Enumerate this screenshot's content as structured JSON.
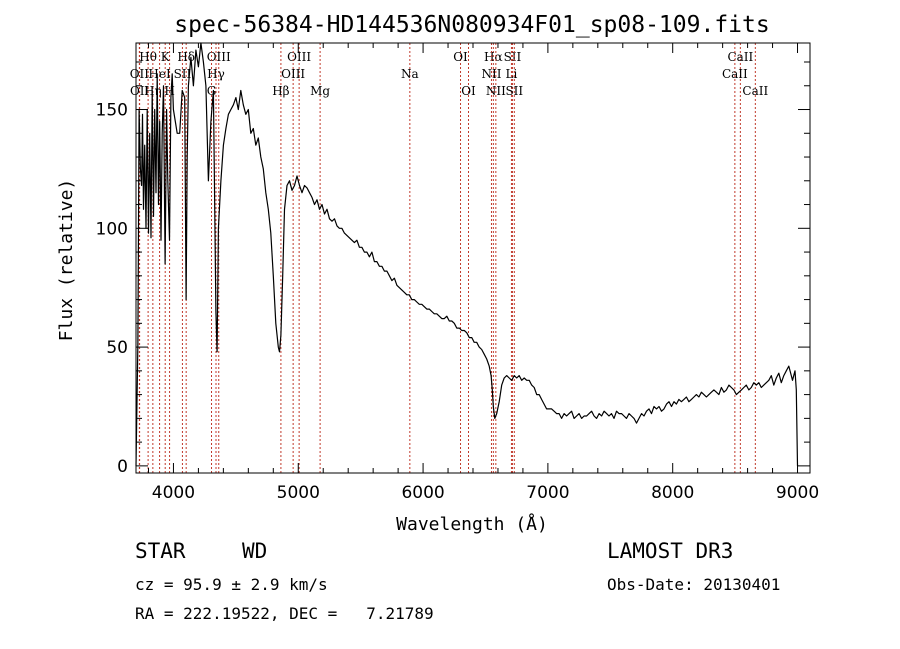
{
  "chart_data": {
    "type": "line",
    "title": "spec-56384-HD144536N080934F01_sp08-109.fits",
    "xlabel": "Wavelength (Å)",
    "ylabel": "Flux (relative)",
    "xlim": [
      3700,
      9100
    ],
    "ylim": [
      -3,
      178
    ],
    "xticks": [
      4000,
      5000,
      6000,
      7000,
      8000,
      9000
    ],
    "yticks": [
      0,
      50,
      100,
      150
    ],
    "series": [
      {
        "name": "spectrum",
        "x": [
          3700,
          3715,
          3725,
          3735,
          3745,
          3752,
          3760,
          3770,
          3780,
          3790,
          3800,
          3810,
          3820,
          3830,
          3840,
          3850,
          3860,
          3870,
          3880,
          3890,
          3900,
          3910,
          3920,
          3933,
          3945,
          3955,
          3968,
          3980,
          3990,
          4000,
          4015,
          4030,
          4050,
          4070,
          4090,
          4101,
          4110,
          4120,
          4140,
          4160,
          4180,
          4200,
          4220,
          4240,
          4260,
          4280,
          4300,
          4320,
          4340,
          4350,
          4360,
          4380,
          4400,
          4420,
          4440,
          4460,
          4480,
          4500,
          4520,
          4540,
          4560,
          4580,
          4600,
          4620,
          4640,
          4660,
          4680,
          4700,
          4720,
          4740,
          4760,
          4780,
          4800,
          4820,
          4840,
          4850,
          4861,
          4875,
          4890,
          4910,
          4930,
          4950,
          4970,
          4990,
          5010,
          5030,
          5050,
          5070,
          5090,
          5110,
          5130,
          5150,
          5170,
          5190,
          5210,
          5230,
          5250,
          5270,
          5290,
          5310,
          5330,
          5350,
          5370,
          5390,
          5410,
          5430,
          5450,
          5470,
          5490,
          5510,
          5530,
          5550,
          5570,
          5590,
          5610,
          5630,
          5650,
          5670,
          5690,
          5710,
          5730,
          5750,
          5770,
          5790,
          5810,
          5830,
          5850,
          5870,
          5890,
          5910,
          5930,
          5950,
          5970,
          5990,
          6010,
          6030,
          6050,
          6070,
          6090,
          6110,
          6130,
          6150,
          6170,
          6190,
          6210,
          6230,
          6250,
          6270,
          6290,
          6310,
          6330,
          6350,
          6370,
          6390,
          6410,
          6430,
          6450,
          6470,
          6490,
          6510,
          6530,
          6545,
          6555,
          6563,
          6575,
          6590,
          6610,
          6630,
          6650,
          6670,
          6690,
          6710,
          6730,
          6750,
          6770,
          6790,
          6810,
          6830,
          6850,
          6870,
          6890,
          6910,
          6930,
          6950,
          6970,
          6990,
          7010,
          7030,
          7050,
          7070,
          7090,
          7110,
          7130,
          7150,
          7170,
          7190,
          7210,
          7230,
          7250,
          7270,
          7290,
          7310,
          7330,
          7350,
          7370,
          7390,
          7410,
          7430,
          7450,
          7470,
          7490,
          7510,
          7530,
          7550,
          7570,
          7590,
          7610,
          7630,
          7650,
          7670,
          7690,
          7710,
          7730,
          7750,
          7770,
          7790,
          7810,
          7830,
          7850,
          7870,
          7890,
          7910,
          7930,
          7950,
          7970,
          7990,
          8010,
          8030,
          8050,
          8070,
          8090,
          8110,
          8130,
          8150,
          8170,
          8190,
          8210,
          8230,
          8250,
          8270,
          8290,
          8310,
          8330,
          8350,
          8370,
          8390,
          8410,
          8430,
          8450,
          8470,
          8490,
          8510,
          8530,
          8550,
          8570,
          8590,
          8610,
          8630,
          8650,
          8670,
          8690,
          8710,
          8730,
          8750,
          8770,
          8790,
          8810,
          8830,
          8850,
          8870,
          8890,
          8910,
          8930,
          8950,
          8960,
          8980,
          8990,
          9000
        ],
        "values": [
          0,
          52,
          150,
          125,
          118,
          148,
          108,
          135,
          100,
          150,
          98,
          140,
          96,
          158,
          105,
          150,
          115,
          165,
          110,
          145,
          95,
          140,
          160,
          85,
          150,
          120,
          95,
          155,
          165,
          150,
          145,
          140,
          140,
          158,
          155,
          70,
          130,
          160,
          172,
          160,
          175,
          168,
          178,
          170,
          160,
          120,
          145,
          158,
          65,
          48,
          100,
          120,
          135,
          142,
          148,
          150,
          152,
          155,
          150,
          158,
          152,
          148,
          150,
          140,
          142,
          135,
          138,
          130,
          125,
          115,
          108,
          98,
          80,
          60,
          50,
          48,
          55,
          80,
          108,
          118,
          120,
          116,
          118,
          122,
          118,
          115,
          118,
          117,
          115,
          113,
          110,
          112,
          108,
          110,
          106,
          108,
          104,
          103,
          104,
          101,
          100,
          100,
          98,
          97,
          96,
          95,
          94,
          95,
          92,
          92,
          90,
          90,
          88,
          90,
          86,
          86,
          84,
          84,
          82,
          82,
          80,
          78,
          79,
          76,
          75,
          74,
          73,
          72,
          72,
          70,
          70,
          69,
          68,
          68,
          67,
          66,
          66,
          65,
          64,
          64,
          63,
          62,
          62,
          63,
          61,
          61,
          60,
          58,
          58,
          57,
          57,
          56,
          54,
          54,
          52,
          52,
          50,
          49,
          47,
          45,
          42,
          38,
          32,
          25,
          20,
          22,
          27,
          34,
          37,
          38,
          37,
          36,
          38,
          37,
          38,
          36,
          37,
          36,
          36,
          34,
          33,
          30,
          30,
          28,
          26,
          24,
          24,
          24,
          23,
          22,
          22,
          20,
          22,
          21,
          22,
          23,
          20,
          21,
          22,
          20,
          21,
          21,
          22,
          23,
          21,
          20,
          22,
          21,
          23,
          22,
          21,
          22,
          20,
          23,
          22,
          22,
          21,
          20,
          22,
          21,
          20,
          18,
          20,
          22,
          21,
          23,
          24,
          22,
          25,
          24,
          25,
          23,
          24,
          26,
          27,
          25,
          27,
          26,
          28,
          27,
          28,
          29,
          27,
          28,
          29,
          30,
          29,
          31,
          30,
          29,
          30,
          31,
          32,
          31,
          30,
          33,
          31,
          32,
          34,
          33,
          32,
          30,
          31,
          32,
          33,
          34,
          32,
          33,
          35,
          34,
          35,
          33,
          34,
          35,
          36,
          38,
          34,
          37,
          39,
          35,
          38,
          40,
          42,
          38,
          36,
          40,
          32,
          0
        ]
      }
    ],
    "spectral_lines": [
      {
        "name": "Hθ",
        "x": 3797,
        "row": 1
      },
      {
        "name": "OII",
        "x": 3727,
        "row": 2
      },
      {
        "name": "OII",
        "x": 3729,
        "row": 3
      },
      {
        "name": "Hη",
        "x": 3835,
        "row": 3
      },
      {
        "name": "HeI",
        "x": 3889,
        "row": 2
      },
      {
        "name": "K",
        "x": 3934,
        "row": 1
      },
      {
        "name": "H",
        "x": 3969,
        "row": 3
      },
      {
        "name": "Hδ",
        "x": 4102,
        "row": 1
      },
      {
        "name": "SII",
        "x": 4072,
        "row": 2
      },
      {
        "name": "OIII",
        "x": 4363,
        "row": 1
      },
      {
        "name": "Hγ",
        "x": 4341,
        "row": 2
      },
      {
        "name": "G",
        "x": 4305,
        "row": 3
      },
      {
        "name": "Hβ",
        "x": 4861,
        "row": 3
      },
      {
        "name": "OIII",
        "x": 5007,
        "row": 1
      },
      {
        "name": "OIII",
        "x": 4959,
        "row": 2
      },
      {
        "name": "Mg",
        "x": 5175,
        "row": 3
      },
      {
        "name": "Na",
        "x": 5894,
        "row": 2
      },
      {
        "name": "OI",
        "x": 6300,
        "row": 1
      },
      {
        "name": "OI",
        "x": 6364,
        "row": 3
      },
      {
        "name": "Hα",
        "x": 6563,
        "row": 1
      },
      {
        "name": "NII",
        "x": 6548,
        "row": 2
      },
      {
        "name": "NII",
        "x": 6583,
        "row": 3
      },
      {
        "name": "SII",
        "x": 6716,
        "row": 1
      },
      {
        "name": "Li",
        "x": 6708,
        "row": 2
      },
      {
        "name": "SII",
        "x": 6731,
        "row": 3
      },
      {
        "name": "CaII",
        "x": 8542,
        "row": 1
      },
      {
        "name": "CaII",
        "x": 8498,
        "row": 2
      },
      {
        "name": "CaII",
        "x": 8662,
        "row": 3
      }
    ]
  },
  "footer": {
    "object_class": "STAR",
    "subclass": "WD",
    "survey": "LAMOST DR3",
    "cz": "cz = 95.9 ± 2.9 km/s",
    "obs_date": "Obs-Date: 20130401",
    "coords": "RA = 222.19522, DEC =   7.21789"
  }
}
